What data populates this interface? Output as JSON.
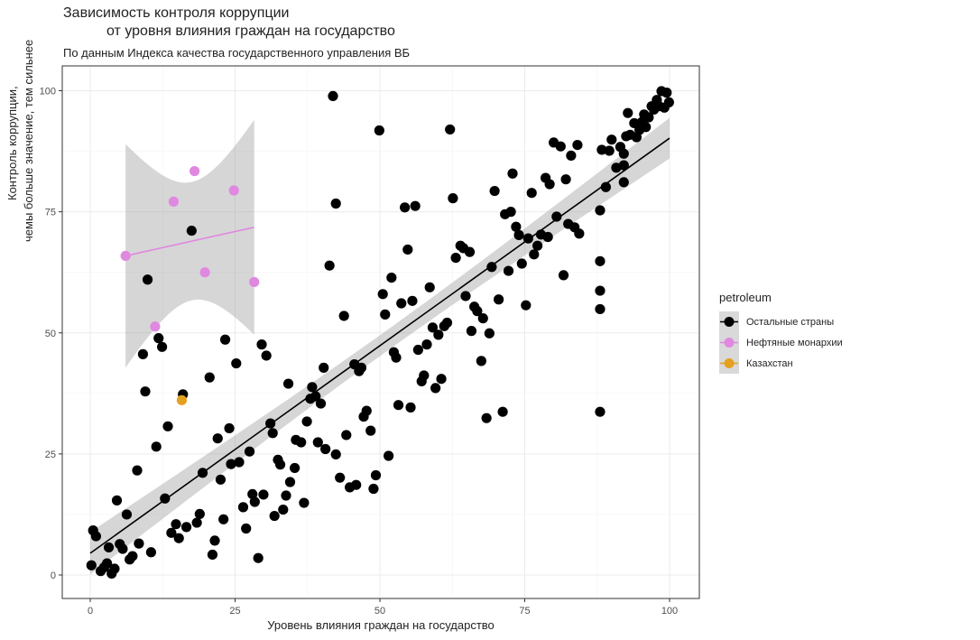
{
  "chart_data": {
    "type": "scatter",
    "title_line1": "Зависимость контроля коррупции",
    "title_line2": "от уровня влияния граждан на государство",
    "subtitle": "По данным Индекса качества государственного управления ВБ",
    "xlabel": "Уровень влияния граждан на государство",
    "ylabel_line1": "Контроль коррупции,",
    "ylabel_line2": "чемы больше значение, тем сильнее",
    "xlim": [
      -5,
      105
    ],
    "ylim": [
      -5,
      105
    ],
    "x_ticks": [
      0,
      25,
      50,
      75,
      100
    ],
    "y_ticks": [
      0,
      25,
      50,
      75,
      100
    ],
    "grid": true,
    "legend": {
      "title": "petroleum",
      "placement": "right",
      "entries": [
        "Остальные страны",
        "Нефтяные монархии",
        "Казахстан"
      ]
    },
    "series": [
      {
        "name": "Остальные страны",
        "color": "#000000",
        "points": [
          [
            0.2,
            2.0
          ],
          [
            0.5,
            9.2
          ],
          [
            1.0,
            8.0
          ],
          [
            1.8,
            0.8
          ],
          [
            2.4,
            1.6
          ],
          [
            2.9,
            2.4
          ],
          [
            3.2,
            5.7
          ],
          [
            3.7,
            0.3
          ],
          [
            4.2,
            1.3
          ],
          [
            4.6,
            15.4
          ],
          [
            5.1,
            6.4
          ],
          [
            5.6,
            5.4
          ],
          [
            6.3,
            12.5
          ],
          [
            6.8,
            3.2
          ],
          [
            7.3,
            3.9
          ],
          [
            8.1,
            21.6
          ],
          [
            8.4,
            6.5
          ],
          [
            9.1,
            45.6
          ],
          [
            9.5,
            37.9
          ],
          [
            9.9,
            61.0
          ],
          [
            10.5,
            4.7
          ],
          [
            11.4,
            26.5
          ],
          [
            11.8,
            48.9
          ],
          [
            12.4,
            47.1
          ],
          [
            12.9,
            15.8
          ],
          [
            13.4,
            30.7
          ],
          [
            14.0,
            8.7
          ],
          [
            14.8,
            10.5
          ],
          [
            15.3,
            7.6
          ],
          [
            16.0,
            37.3
          ],
          [
            16.6,
            9.9
          ],
          [
            17.5,
            71.1
          ],
          [
            18.4,
            10.8
          ],
          [
            18.9,
            12.6
          ],
          [
            19.4,
            21.1
          ],
          [
            20.6,
            40.8
          ],
          [
            21.1,
            4.2
          ],
          [
            21.5,
            7.1
          ],
          [
            22.0,
            28.2
          ],
          [
            22.5,
            19.7
          ],
          [
            23.0,
            11.5
          ],
          [
            23.3,
            48.6
          ],
          [
            24.0,
            30.3
          ],
          [
            24.3,
            22.9
          ],
          [
            25.2,
            43.7
          ],
          [
            25.7,
            23.3
          ],
          [
            26.4,
            14.0
          ],
          [
            26.9,
            9.6
          ],
          [
            27.5,
            25.5
          ],
          [
            28.0,
            16.7
          ],
          [
            28.4,
            15.1
          ],
          [
            29.0,
            3.5
          ],
          [
            29.6,
            47.6
          ],
          [
            29.9,
            16.6
          ],
          [
            30.4,
            45.3
          ],
          [
            31.1,
            31.3
          ],
          [
            31.5,
            29.3
          ],
          [
            31.8,
            12.2
          ],
          [
            32.4,
            23.8
          ],
          [
            32.8,
            22.8
          ],
          [
            33.3,
            13.5
          ],
          [
            33.8,
            16.4
          ],
          [
            34.2,
            39.5
          ],
          [
            34.5,
            19.2
          ],
          [
            35.3,
            22.1
          ],
          [
            35.5,
            27.9
          ],
          [
            36.4,
            27.4
          ],
          [
            36.9,
            14.9
          ],
          [
            37.4,
            31.7
          ],
          [
            38.0,
            36.4
          ],
          [
            38.3,
            38.8
          ],
          [
            38.9,
            36.9
          ],
          [
            39.3,
            27.4
          ],
          [
            39.8,
            35.4
          ],
          [
            40.3,
            42.8
          ],
          [
            40.6,
            26.0
          ],
          [
            41.3,
            63.9
          ],
          [
            41.9,
            98.9
          ],
          [
            42.4,
            24.9
          ],
          [
            42.4,
            76.7
          ],
          [
            43.1,
            20.1
          ],
          [
            43.8,
            53.5
          ],
          [
            44.2,
            28.9
          ],
          [
            44.8,
            18.1
          ],
          [
            45.6,
            43.5
          ],
          [
            45.9,
            18.6
          ],
          [
            46.4,
            42.1
          ],
          [
            46.8,
            42.8
          ],
          [
            47.2,
            32.7
          ],
          [
            47.7,
            33.9
          ],
          [
            48.4,
            29.8
          ],
          [
            48.9,
            17.8
          ],
          [
            49.3,
            20.6
          ],
          [
            49.9,
            91.8
          ],
          [
            50.5,
            58.0
          ],
          [
            50.9,
            53.8
          ],
          [
            51.5,
            24.6
          ],
          [
            52.0,
            61.4
          ],
          [
            52.4,
            46.0
          ],
          [
            52.8,
            44.9
          ],
          [
            53.2,
            35.1
          ],
          [
            53.7,
            56.1
          ],
          [
            54.3,
            75.9
          ],
          [
            54.8,
            67.2
          ],
          [
            55.3,
            34.6
          ],
          [
            55.6,
            56.6
          ],
          [
            56.1,
            76.2
          ],
          [
            56.6,
            46.5
          ],
          [
            57.2,
            40.0
          ],
          [
            57.6,
            41.2
          ],
          [
            58.1,
            47.6
          ],
          [
            58.6,
            59.4
          ],
          [
            59.1,
            51.1
          ],
          [
            59.6,
            38.6
          ],
          [
            60.1,
            49.6
          ],
          [
            60.6,
            40.5
          ],
          [
            61.1,
            51.4
          ],
          [
            61.6,
            52.1
          ],
          [
            62.1,
            92.0
          ],
          [
            62.6,
            77.8
          ],
          [
            63.1,
            65.5
          ],
          [
            63.9,
            68.0
          ],
          [
            64.4,
            67.5
          ],
          [
            64.8,
            57.6
          ],
          [
            65.5,
            66.7
          ],
          [
            65.8,
            50.4
          ],
          [
            66.3,
            55.4
          ],
          [
            66.8,
            54.5
          ],
          [
            67.5,
            44.2
          ],
          [
            67.8,
            53.0
          ],
          [
            68.4,
            32.4
          ],
          [
            68.9,
            49.9
          ],
          [
            69.3,
            63.6
          ],
          [
            69.8,
            79.3
          ],
          [
            70.5,
            56.9
          ],
          [
            71.2,
            33.7
          ],
          [
            71.6,
            74.5
          ],
          [
            72.2,
            62.8
          ],
          [
            72.6,
            75.0
          ],
          [
            72.9,
            82.9
          ],
          [
            73.5,
            71.9
          ],
          [
            74.0,
            70.2
          ],
          [
            74.5,
            64.3
          ],
          [
            75.2,
            55.7
          ],
          [
            75.6,
            69.5
          ],
          [
            76.2,
            78.9
          ],
          [
            76.6,
            66.2
          ],
          [
            77.2,
            68.0
          ],
          [
            77.8,
            70.3
          ],
          [
            78.6,
            82.0
          ],
          [
            79.0,
            69.8
          ],
          [
            79.3,
            80.7
          ],
          [
            80.0,
            89.3
          ],
          [
            80.5,
            74.0
          ],
          [
            81.2,
            88.5
          ],
          [
            81.7,
            61.9
          ],
          [
            82.1,
            81.7
          ],
          [
            82.5,
            72.5
          ],
          [
            83.0,
            86.6
          ],
          [
            83.6,
            71.8
          ],
          [
            84.1,
            88.8
          ],
          [
            84.4,
            70.5
          ],
          [
            88.0,
            33.7
          ],
          [
            88.0,
            54.9
          ],
          [
            88.0,
            58.7
          ],
          [
            88.0,
            64.8
          ],
          [
            88.0,
            75.3
          ],
          [
            88.3,
            87.8
          ],
          [
            89.0,
            80.1
          ],
          [
            89.6,
            87.6
          ],
          [
            90.0,
            89.9
          ],
          [
            90.8,
            84.1
          ],
          [
            91.5,
            88.4
          ],
          [
            92.1,
            81.1
          ],
          [
            92.1,
            84.6
          ],
          [
            92.1,
            87.0
          ],
          [
            92.5,
            90.6
          ],
          [
            92.8,
            95.4
          ],
          [
            93.2,
            90.9
          ],
          [
            93.9,
            93.3
          ],
          [
            94.3,
            90.4
          ],
          [
            94.8,
            91.9
          ],
          [
            95.2,
            93.5
          ],
          [
            95.6,
            95.1
          ],
          [
            95.9,
            92.5
          ],
          [
            96.4,
            94.5
          ],
          [
            96.9,
            96.8
          ],
          [
            97.3,
            96.1
          ],
          [
            97.8,
            98.1
          ],
          [
            98.2,
            96.8
          ],
          [
            98.6,
            99.9
          ],
          [
            99.1,
            96.5
          ],
          [
            99.5,
            99.6
          ],
          [
            99.9,
            97.6
          ]
        ],
        "trend": {
          "x": [
            0,
            100
          ],
          "y": [
            4.5,
            90.2
          ]
        }
      },
      {
        "name": "Нефтяные монархии",
        "color": "#e088e0",
        "points": [
          [
            6.1,
            65.9
          ],
          [
            11.2,
            51.3
          ],
          [
            14.4,
            77.1
          ],
          [
            18.0,
            83.4
          ],
          [
            19.8,
            62.5
          ],
          [
            24.8,
            79.4
          ],
          [
            28.3,
            60.5
          ]
        ],
        "trend": {
          "x": [
            6.1,
            28.3
          ],
          "y": [
            65.9,
            71.8
          ]
        }
      },
      {
        "name": "Казахстан",
        "color": "#e5a020",
        "points": [
          [
            15.8,
            36.1
          ]
        ]
      }
    ]
  }
}
